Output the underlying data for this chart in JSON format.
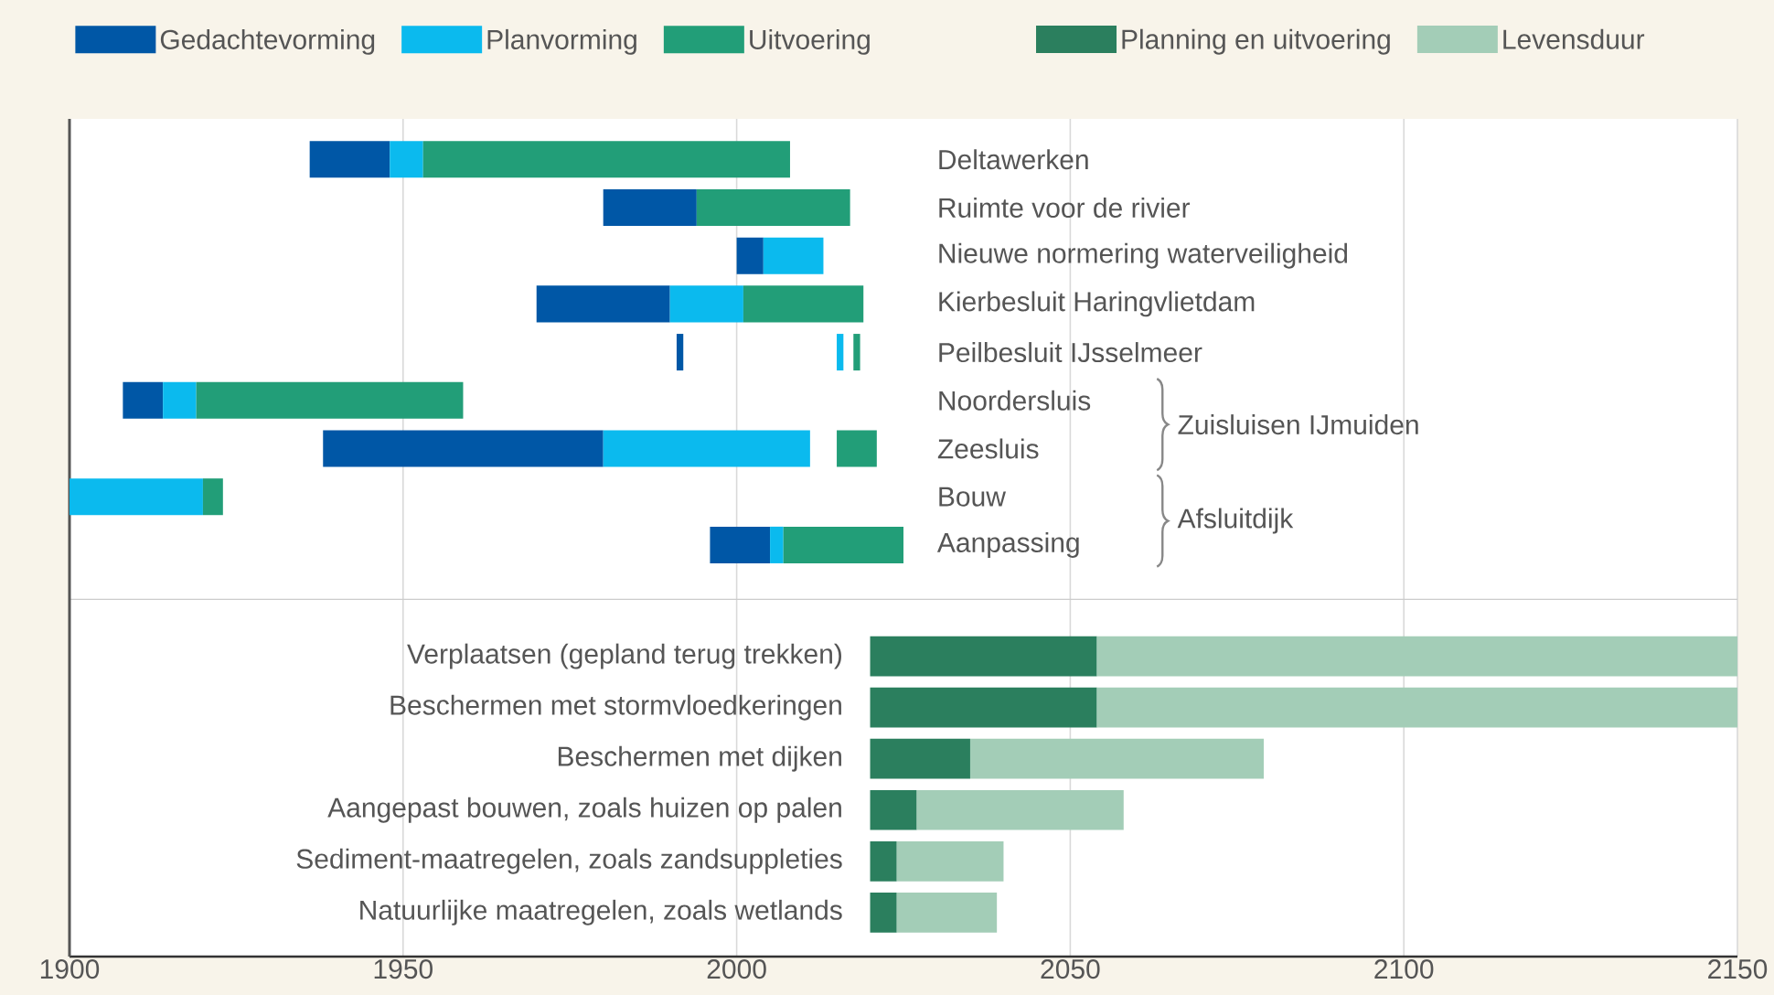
{
  "chart_data": [
    {
      "type": "bar",
      "orientation": "horizontal",
      "categories": [
        "Deltawerken",
        "Ruimte voor de rivier",
        "Nieuwe normering waterveiligheid",
        "Kierbesluit Haringvlietdam",
        "Peilbesluit IJsselmeer",
        "Noordersluis",
        "Zeesluis",
        "Bouw",
        "Aanpassing"
      ],
      "series": [
        {
          "name": "Gedachtevorming",
          "color": "#0057a6",
          "base": [
            1936,
            1980,
            2000,
            1970,
            1991,
            1908,
            1938,
            null,
            1996
          ],
          "values": [
            12,
            14,
            4,
            20,
            1,
            6,
            42,
            null,
            9
          ]
        },
        {
          "name": "Planvorming",
          "color": "#0bbaee",
          "base": [
            1948,
            null,
            2004,
            1990,
            2015,
            1914,
            1980,
            1900,
            2005
          ],
          "values": [
            5,
            null,
            9,
            11,
            1,
            5,
            31,
            20,
            2
          ]
        },
        {
          "name": "Uitvoering",
          "color": "#229e78",
          "base": [
            1953,
            1994,
            null,
            2001,
            2017.5,
            1919,
            2015,
            1920,
            2007
          ],
          "values": [
            55,
            23,
            null,
            18,
            1,
            40,
            6,
            3,
            18
          ]
        }
      ],
      "xlim": [
        1900,
        2150
      ],
      "xticks": [
        1900,
        1950,
        2000,
        2050,
        2100,
        2150
      ],
      "grid": "x",
      "legend": "top",
      "tick_labels": "y",
      "annotations": [
        "Zuisluisen IJmuiden",
        "Afsluitdijk"
      ]
    },
    {
      "type": "bar",
      "orientation": "horizontal",
      "categories": [
        "Verplaatsen  (gepland terug trekken)",
        "Beschermen met stormvloedkeringen",
        "Beschermen met dijken",
        "Aangepast bouwen, zoals huizen op palen",
        "Sediment-maatregelen, zoals zandsuppleties",
        "Natuurlijke maatregelen, zoals wetlands"
      ],
      "series": [
        {
          "name": "Planning en uitvoering",
          "color": "#2b7f5e",
          "base": [
            2020,
            2020,
            2020,
            2020,
            2020,
            2020
          ],
          "values": [
            34,
            34,
            15,
            7,
            4,
            4
          ]
        },
        {
          "name": "Levensduur",
          "color": "#a3cdb7",
          "base": [
            2054,
            2054,
            2035,
            2027,
            2024,
            2024
          ],
          "values": [
            96,
            96,
            44,
            31,
            16,
            15
          ]
        }
      ],
      "xlim": [
        1900,
        2150
      ],
      "xticks": [
        1900,
        1950,
        2000,
        2050,
        2100,
        2150
      ],
      "grid": "x",
      "legend": "top"
    }
  ]
}
